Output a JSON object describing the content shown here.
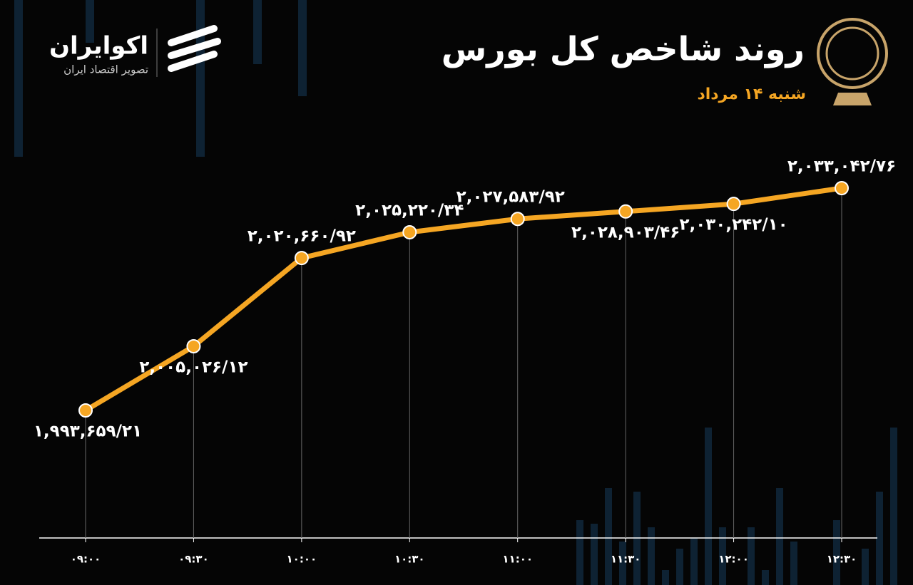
{
  "chart_data": {
    "type": "line",
    "title": "روند شاخص کل بورس",
    "subtitle": "شنبه ۱۴ مرداد",
    "brand": {
      "name": "اکوایران",
      "tagline": "تصویر اقتصاد ایران"
    },
    "categories": [
      "۰۹:۰۰",
      "۰۹:۳۰",
      "۱۰:۰۰",
      "۱۰:۳۰",
      "۱۱:۰۰",
      "۱۱:۳۰",
      "۱۲:۰۰",
      "۱۲:۳۰"
    ],
    "series": [
      {
        "color": "#f5a623",
        "values": [
          1993659.21,
          2005026.12,
          2020660.92,
          2025220.34,
          2027583.92,
          2028903.46,
          2030242.1,
          2033042.76
        ],
        "value_labels": [
          "۱,۹۹۳,۶۵۹/۲۱",
          "۲,۰۰۵,۰۲۶/۱۲",
          "۲,۰۲۰,۶۶۰/۹۲",
          "۲,۰۲۵,۲۲۰/۳۴",
          "۲,۰۲۷,۵۸۳/۹۲",
          "۲,۰۲۸,۹۰۳/۴۶",
          "۲,۰۳۰,۲۴۲/۱۰",
          "۲,۰۳۳,۰۴۲/۷۶"
        ]
      }
    ]
  }
}
